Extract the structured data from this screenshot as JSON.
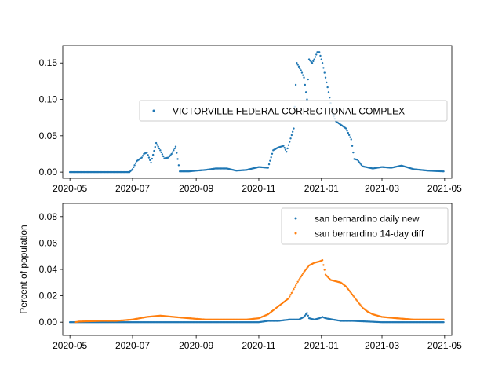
{
  "chart_data": [
    {
      "type": "scatter",
      "xlabel": "",
      "ylabel": "",
      "x_ticks": [
        "2020-05",
        "2020-07",
        "2020-09",
        "2020-11",
        "2021-01",
        "2021-03",
        "2021-05"
      ],
      "y_ticks": [
        "0.00",
        "0.05",
        "0.10",
        "0.15"
      ],
      "xlim": [
        "2020-04-24",
        "2021-05-08"
      ],
      "ylim": [
        -0.0085,
        0.174
      ],
      "legend_position": "center-right",
      "grid": false,
      "series": [
        {
          "name": "VICTORVILLE FEDERAL CORRECTIONAL COMPLEX",
          "color": "#1f77b4",
          "points": [
            [
              "2020-05-01",
              0
            ],
            [
              "2020-05-15",
              0
            ],
            [
              "2020-06-01",
              0
            ],
            [
              "2020-06-15",
              0
            ],
            [
              "2020-06-28",
              0
            ],
            [
              "2020-07-01",
              0.004
            ],
            [
              "2020-07-05",
              0.015
            ],
            [
              "2020-07-10",
              0.02
            ],
            [
              "2020-07-12",
              0.025
            ],
            [
              "2020-07-15",
              0.027
            ],
            [
              "2020-07-19",
              0.013
            ],
            [
              "2020-07-24",
              0.04
            ],
            [
              "2020-07-28",
              0.03
            ],
            [
              "2020-08-01",
              0.019
            ],
            [
              "2020-08-05",
              0.02
            ],
            [
              "2020-08-08",
              0.025
            ],
            [
              "2020-08-12",
              0.035
            ],
            [
              "2020-08-16",
              0.001
            ],
            [
              "2020-08-25",
              0.001
            ],
            [
              "2020-09-01",
              0.002
            ],
            [
              "2020-09-10",
              0.003
            ],
            [
              "2020-09-20",
              0.005
            ],
            [
              "2020-10-01",
              0.005
            ],
            [
              "2020-10-10",
              0.002
            ],
            [
              "2020-10-20",
              0.003
            ],
            [
              "2020-11-01",
              0.007
            ],
            [
              "2020-11-10",
              0.006
            ],
            [
              "2020-11-15",
              0.03
            ],
            [
              "2020-11-20",
              0.034
            ],
            [
              "2020-11-25",
              0.036
            ],
            [
              "2020-11-28",
              0.028
            ],
            [
              "2020-12-05",
              0.06
            ],
            [
              "2020-12-08",
              0.15
            ],
            [
              "2020-12-12",
              0.14
            ],
            [
              "2020-12-15",
              0.13
            ],
            [
              "2020-12-18",
              0.1
            ],
            [
              "2020-12-20",
              0.155
            ],
            [
              "2020-12-23",
              0.15
            ],
            [
              "2020-12-25",
              0.155
            ],
            [
              "2020-12-28",
              0.165
            ],
            [
              "2020-12-30",
              0.165
            ],
            [
              "2021-01-02",
              0.15
            ],
            [
              "2021-01-05",
              0.13
            ],
            [
              "2021-01-08",
              0.11
            ],
            [
              "2021-01-12",
              0.08
            ],
            [
              "2021-01-15",
              0.07
            ],
            [
              "2021-01-20",
              0.065
            ],
            [
              "2021-01-25",
              0.06
            ],
            [
              "2021-01-30",
              0.045
            ],
            [
              "2021-02-02",
              0.018
            ],
            [
              "2021-02-05",
              0.017
            ],
            [
              "2021-02-10",
              0.008
            ],
            [
              "2021-02-20",
              0.005
            ],
            [
              "2021-03-01",
              0.007
            ],
            [
              "2021-03-10",
              0.006
            ],
            [
              "2021-03-20",
              0.009
            ],
            [
              "2021-04-01",
              0.004
            ],
            [
              "2021-04-15",
              0.002
            ],
            [
              "2021-04-30",
              0.001
            ]
          ]
        }
      ]
    },
    {
      "type": "scatter",
      "xlabel": "",
      "ylabel": "Percent of population",
      "x_ticks": [
        "2020-05",
        "2020-07",
        "2020-09",
        "2020-11",
        "2021-01",
        "2021-03",
        "2021-05"
      ],
      "y_ticks": [
        "0.00",
        "0.02",
        "0.04",
        "0.06",
        "0.08"
      ],
      "xlim": [
        "2020-04-24",
        "2021-05-08"
      ],
      "ylim": [
        -0.01,
        0.09
      ],
      "legend_position": "upper right",
      "grid": false,
      "series": [
        {
          "name": "san bernardino daily new",
          "color": "#1f77b4",
          "points": [
            [
              "2020-05-01",
              0
            ],
            [
              "2020-06-01",
              0
            ],
            [
              "2020-07-01",
              0
            ],
            [
              "2020-08-01",
              0
            ],
            [
              "2020-09-01",
              0
            ],
            [
              "2020-10-01",
              0
            ],
            [
              "2020-11-01",
              0
            ],
            [
              "2020-11-10",
              0.001
            ],
            [
              "2020-11-20",
              0.001
            ],
            [
              "2020-12-01",
              0.002
            ],
            [
              "2020-12-10",
              0.002
            ],
            [
              "2020-12-15",
              0.004
            ],
            [
              "2020-12-18",
              0.007
            ],
            [
              "2020-12-20",
              0.003
            ],
            [
              "2020-12-25",
              0.002
            ],
            [
              "2020-12-30",
              0.003
            ],
            [
              "2021-01-02",
              0.004
            ],
            [
              "2021-01-05",
              0.003
            ],
            [
              "2021-01-12",
              0.002
            ],
            [
              "2021-01-20",
              0.001
            ],
            [
              "2021-02-01",
              0.001
            ],
            [
              "2021-03-01",
              0
            ],
            [
              "2021-04-01",
              0
            ],
            [
              "2021-04-30",
              0
            ]
          ]
        },
        {
          "name": "san bernardino 14-day diff",
          "color": "#ff7f0e",
          "points": [
            [
              "2020-05-06",
              0
            ],
            [
              "2020-05-10",
              0.0005
            ],
            [
              "2020-06-01",
              0.001
            ],
            [
              "2020-06-15",
              0.001
            ],
            [
              "2020-07-01",
              0.002
            ],
            [
              "2020-07-15",
              0.004
            ],
            [
              "2020-07-28",
              0.005
            ],
            [
              "2020-08-10",
              0.004
            ],
            [
              "2020-08-25",
              0.003
            ],
            [
              "2020-09-10",
              0.002
            ],
            [
              "2020-10-01",
              0.002
            ],
            [
              "2020-10-20",
              0.002
            ],
            [
              "2020-11-01",
              0.003
            ],
            [
              "2020-11-10",
              0.006
            ],
            [
              "2020-11-20",
              0.012
            ],
            [
              "2020-11-30",
              0.018
            ],
            [
              "2020-12-05",
              0.025
            ],
            [
              "2020-12-10",
              0.032
            ],
            [
              "2020-12-15",
              0.038
            ],
            [
              "2020-12-20",
              0.043
            ],
            [
              "2020-12-25",
              0.045
            ],
            [
              "2020-12-30",
              0.046
            ],
            [
              "2021-01-02",
              0.047
            ],
            [
              "2021-01-05",
              0.036
            ],
            [
              "2021-01-10",
              0.032
            ],
            [
              "2021-01-15",
              0.031
            ],
            [
              "2021-01-20",
              0.03
            ],
            [
              "2021-01-25",
              0.027
            ],
            [
              "2021-01-30",
              0.022
            ],
            [
              "2021-02-05",
              0.016
            ],
            [
              "2021-02-10",
              0.011
            ],
            [
              "2021-02-15",
              0.008
            ],
            [
              "2021-02-20",
              0.006
            ],
            [
              "2021-03-01",
              0.004
            ],
            [
              "2021-03-15",
              0.003
            ],
            [
              "2021-04-01",
              0.002
            ],
            [
              "2021-04-15",
              0.002
            ],
            [
              "2021-04-30",
              0.002
            ]
          ]
        }
      ]
    }
  ]
}
